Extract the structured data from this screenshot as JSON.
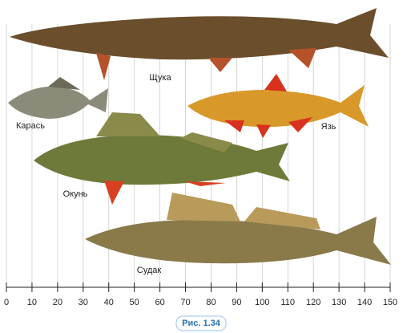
{
  "fish": [
    {
      "label": "Щука"
    },
    {
      "label": "Карась"
    },
    {
      "label": "Язь"
    },
    {
      "label": "Окунь"
    },
    {
      "label": "Судак"
    }
  ],
  "scale": {
    "ticks": [
      0,
      10,
      20,
      30,
      40,
      50,
      60,
      70,
      80,
      90,
      100,
      110,
      120,
      130,
      140,
      150
    ]
  },
  "caption": "Рис. 1.34"
}
